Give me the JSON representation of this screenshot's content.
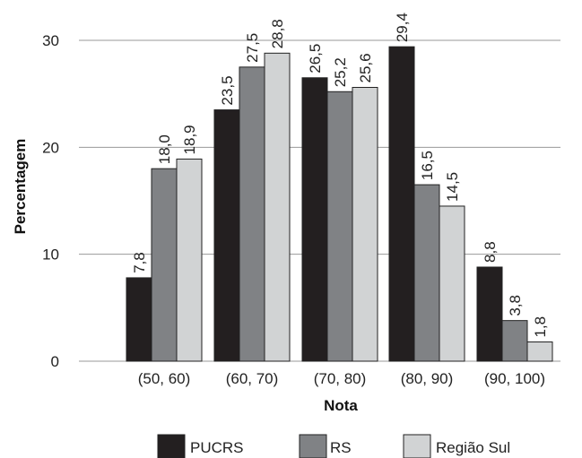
{
  "chart_data": {
    "type": "bar",
    "title": "",
    "xlabel": "Nota",
    "ylabel": "Percentagem",
    "categories": [
      "(50, 60)",
      "(60, 70)",
      "(70, 80)",
      "(80, 90)",
      "(90, 100)"
    ],
    "series": [
      {
        "name": "PUCRS",
        "color": "#231f20",
        "values": [
          7.8,
          23.5,
          26.5,
          29.4,
          8.8
        ],
        "labels": [
          "7,8",
          "23,5",
          "26,5",
          "29,4",
          "8,8"
        ]
      },
      {
        "name": "RS",
        "color": "#808285",
        "values": [
          18.0,
          27.5,
          25.2,
          16.5,
          3.8
        ],
        "labels": [
          "18,0",
          "27,5",
          "25,2",
          "16,5",
          "3,8"
        ]
      },
      {
        "name": "Região Sul",
        "color": "#d1d3d4",
        "values": [
          18.9,
          28.8,
          25.6,
          14.5,
          1.8
        ],
        "labels": [
          "18,9",
          "28,8",
          "25,6",
          "14,5",
          "1,8"
        ]
      }
    ],
    "ylim": [
      0,
      30
    ],
    "yticks": [
      0,
      10,
      20,
      30
    ],
    "grid": true,
    "legend_position": "bottom"
  }
}
